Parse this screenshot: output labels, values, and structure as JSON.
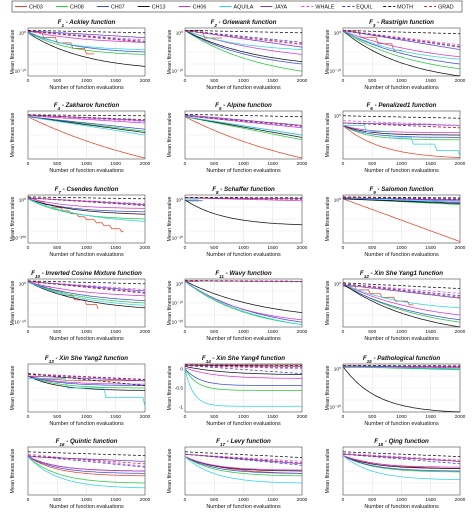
{
  "legend": {
    "series": [
      {
        "name": "CH03",
        "color": "#e8432a",
        "dash": ""
      },
      {
        "name": "CH08",
        "color": "#27c93f",
        "dash": ""
      },
      {
        "name": "CH07",
        "color": "#3a4fd6",
        "dash": ""
      },
      {
        "name": "CH13",
        "color": "#111111",
        "dash": ""
      },
      {
        "name": "CH06",
        "color": "#d13bd1",
        "dash": ""
      },
      {
        "name": "AQUILA",
        "color": "#2fd4e3",
        "dash": ""
      },
      {
        "name": "JAYA",
        "color": "#6a3fd1",
        "dash": ""
      },
      {
        "name": "WHALE",
        "color": "#e84fe0",
        "dash": "3,2"
      },
      {
        "name": "EQUIL",
        "color": "#3a3ad6",
        "dash": "3,2"
      },
      {
        "name": "MOTH",
        "color": "#111111",
        "dash": "3,2"
      },
      {
        "name": "GRAD",
        "color": "#c02e2e",
        "dash": "3,2"
      }
    ]
  },
  "common": {
    "xlabel": "Number of function evaluations",
    "ylabel": "Mean fitness value"
  },
  "chart_data": [
    {
      "type": "line",
      "title": "F1 - Ackley function",
      "sub": "1",
      "name": " - Ackley function",
      "xlim": [
        0,
        2000
      ],
      "xticks": [
        "0",
        "500",
        "1000",
        "1500",
        "2000"
      ],
      "yticks": [
        "10⁰",
        "10⁻¹⁰"
      ],
      "curves": "ackley"
    },
    {
      "type": "line",
      "title": "F2 - Griewank function",
      "sub": "2",
      "name": " - Griewank function",
      "xlim": [
        0,
        2000
      ],
      "xticks": [
        "0",
        "500",
        "1000",
        "1500",
        "2000"
      ],
      "yticks": [
        "10⁰",
        "10⁻¹⁰"
      ],
      "curves": "griewank"
    },
    {
      "type": "line",
      "title": "F3 - Rastrigin function",
      "sub": "3",
      "name": " - Rastrigin function",
      "xlim": [
        0,
        2000
      ],
      "xticks": [
        "0",
        "500",
        "1000",
        "1500",
        "2000"
      ],
      "yticks": [
        "10⁰",
        "10⁻¹⁰"
      ],
      "curves": "rastrigin"
    },
    {
      "type": "line",
      "title": "F4 - Zakharov function",
      "sub": "4",
      "name": " - Zakharov function",
      "xlim": [
        0,
        2000
      ],
      "xticks": [
        "0",
        "500",
        "1000",
        "1500",
        "2000"
      ],
      "yticks": [],
      "curves": "zakharov"
    },
    {
      "type": "line",
      "title": "F5 - Alpine function",
      "sub": "5",
      "name": " - Alpine function",
      "xlim": [
        0,
        2000
      ],
      "xticks": [
        "0",
        "500",
        "1000",
        "1500",
        "2000"
      ],
      "yticks": [],
      "curves": "alpine"
    },
    {
      "type": "line",
      "title": "F6 - Penalized1 function",
      "sub": "6",
      "name": " - Penalized1 function",
      "xlim": [
        0,
        2000
      ],
      "xticks": [
        "0",
        "500",
        "1000",
        "1500",
        "2000"
      ],
      "yticks": [
        "10⁰"
      ],
      "curves": "penalized"
    },
    {
      "type": "line",
      "title": "F7 - Csendes function",
      "sub": "7",
      "name": " - Csendes function",
      "xlim": [
        0,
        2000
      ],
      "xticks": [
        "0",
        "500",
        "1000",
        "1500",
        "2000"
      ],
      "yticks": [
        "10⁰",
        "10⁻²⁰⁰"
      ],
      "curves": "csendes"
    },
    {
      "type": "line",
      "title": "F8 - Schaffer function",
      "sub": "8",
      "name": " - Schaffer function",
      "xlim": [
        0,
        2000
      ],
      "xticks": [
        "0",
        "500",
        "1000",
        "1500",
        "2000"
      ],
      "yticks": [
        "10⁰",
        "10⁻²⁰"
      ],
      "curves": "schaffer"
    },
    {
      "type": "line",
      "title": "F9 - Salomon function",
      "sub": "9",
      "name": " - Salomon function",
      "xlim": [
        0,
        2000
      ],
      "xticks": [
        "0",
        "500",
        "1000",
        "1500",
        "2000"
      ],
      "yticks": [
        "10⁰"
      ],
      "curves": "salomon"
    },
    {
      "type": "line",
      "title": "F10 - Inverted Cosine Mixture function",
      "sub": "10",
      "name": " - Inverted Cosine Mixture function",
      "xlim": [
        0,
        2000
      ],
      "xticks": [
        "0",
        "500",
        "1000",
        "1500",
        "2000"
      ],
      "yticks": [
        "10⁰",
        "10⁻⁵⁰"
      ],
      "curves": "invcos"
    },
    {
      "type": "line",
      "title": "F11 - Wavy function",
      "sub": "11",
      "name": " - Wavy function",
      "xlim": [
        0,
        2000
      ],
      "xticks": [
        "0",
        "500",
        "1000",
        "1500",
        "2000"
      ],
      "yticks": [
        "10⁰",
        "10⁻¹⁰",
        "10⁻²⁰"
      ],
      "curves": "wavy"
    },
    {
      "type": "line",
      "title": "F12 - Xin She Yang1 function",
      "sub": "12",
      "name": " - Xin She Yang1 function",
      "xlim": [
        0,
        2000
      ],
      "xticks": [
        "0",
        "500",
        "1000",
        "1500",
        "2000"
      ],
      "yticks": [
        "10⁰"
      ],
      "curves": "xsy1"
    },
    {
      "type": "line",
      "title": "F13 - Xin She Yang2 function",
      "sub": "13",
      "name": " - Xin She Yang2 function",
      "xlim": [
        0,
        2000
      ],
      "xticks": [
        "0",
        "500",
        "1000",
        "1500",
        "2000"
      ],
      "yticks": [],
      "curves": "xsy2"
    },
    {
      "type": "line",
      "title": "F14 - Xin She Yang4 function",
      "sub": "14",
      "name": " - Xin She Yang4 function",
      "xlim": [
        0,
        2000
      ],
      "xticks": [
        "0",
        "500",
        "1000",
        "1500",
        "2000"
      ],
      "yticks": [
        "0",
        "-0.5",
        "-1"
      ],
      "curves": "xsy4"
    },
    {
      "type": "line",
      "title": "F15 - Pathological function",
      "sub": "15",
      "name": " - Pathological function",
      "xlim": [
        0,
        2000
      ],
      "xticks": [
        "0",
        "500",
        "1000",
        "1500",
        "2000"
      ],
      "yticks": [
        "10⁰",
        "10⁻²⁰"
      ],
      "curves": "patho"
    },
    {
      "type": "line",
      "title": "F16 - Quintic function",
      "sub": "16",
      "name": " - Quintic function",
      "xlim": [
        0,
        2000
      ],
      "xticks": [
        "0",
        "500",
        "1000",
        "1500",
        "2000"
      ],
      "yticks": [],
      "curves": "quintic"
    },
    {
      "type": "line",
      "title": "F17 - Levy function",
      "sub": "17",
      "name": " - Levy function",
      "xlim": [
        0,
        2000
      ],
      "xticks": [
        "0",
        "500",
        "1000",
        "1500",
        "2000"
      ],
      "yticks": [],
      "curves": "levy"
    },
    {
      "type": "line",
      "title": "F18 - Qing function",
      "sub": "18",
      "name": " - Qing function",
      "xlim": [
        0,
        2000
      ],
      "xticks": [
        "0",
        "500",
        "1000",
        "1500",
        "2000"
      ],
      "yticks": [],
      "curves": "qing"
    }
  ]
}
